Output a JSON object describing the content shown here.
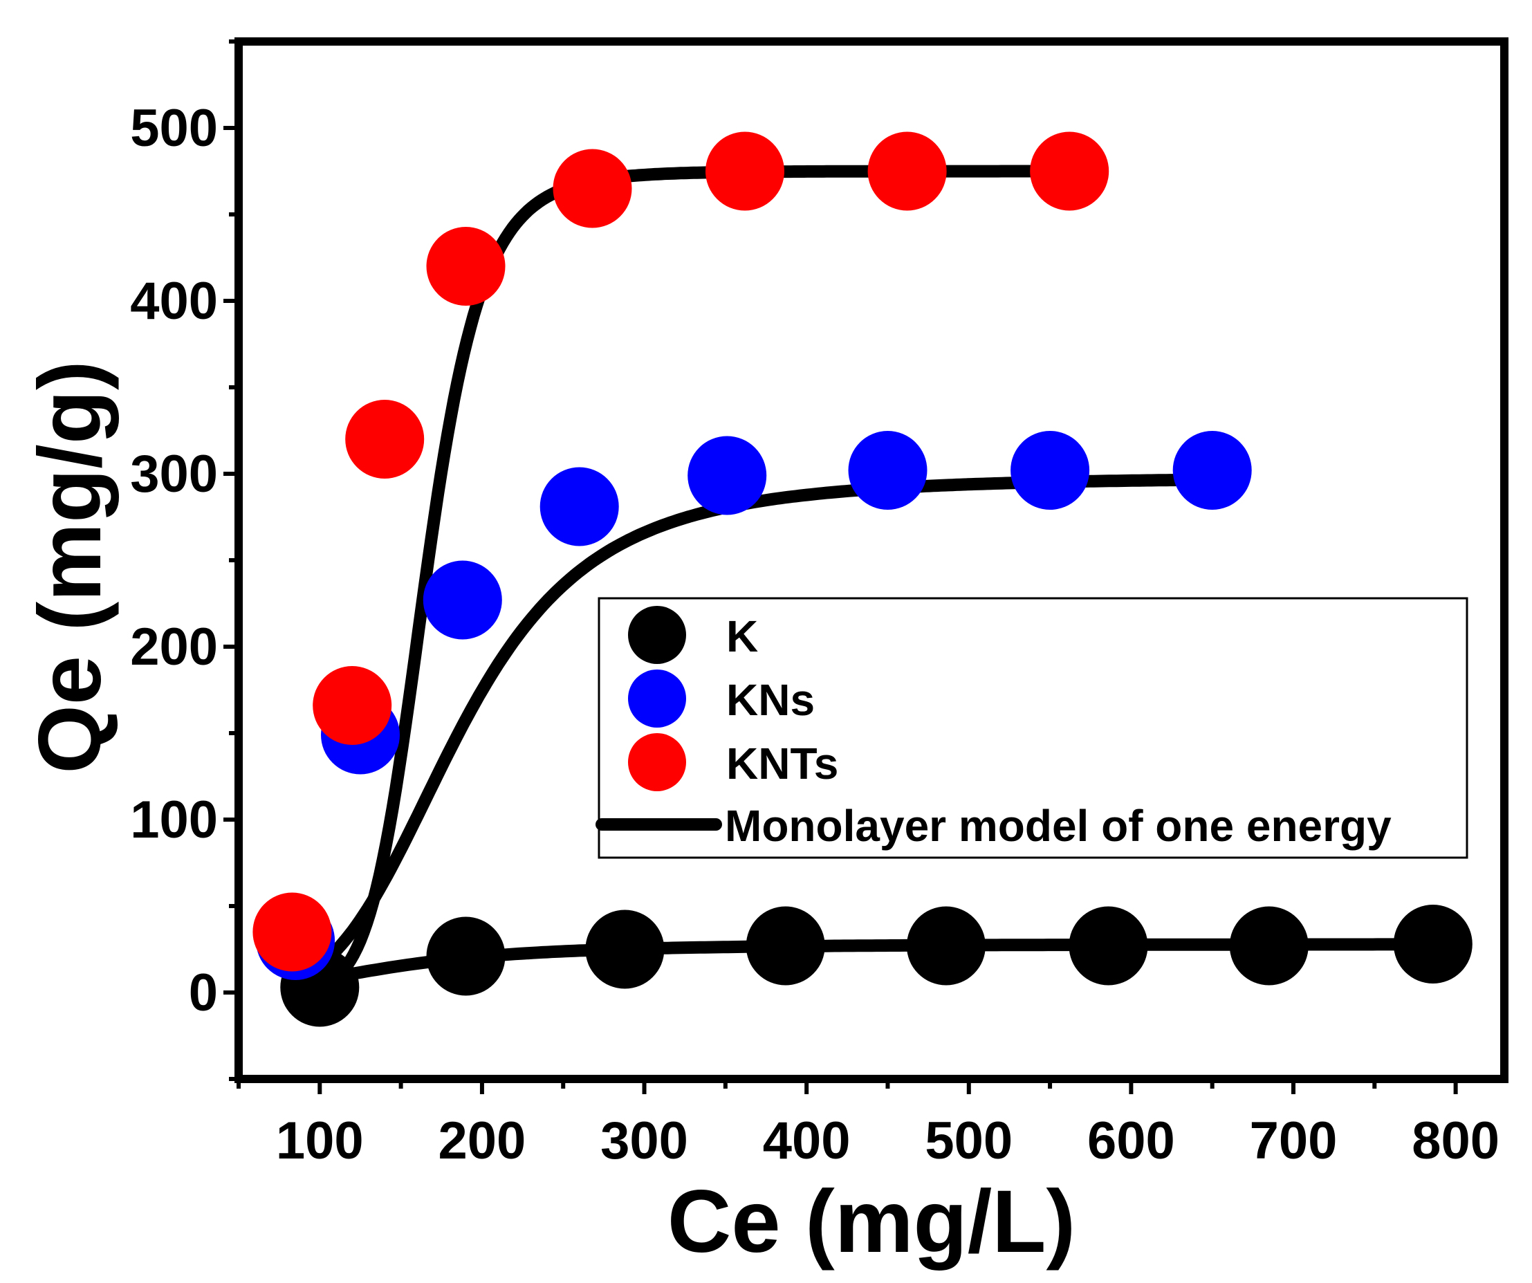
{
  "chart_data": {
    "type": "scatter",
    "xlabel": "Ce (mg/L)",
    "ylabel": "Qe (mg/g)",
    "xlim": [
      50,
      830
    ],
    "ylim": [
      -50,
      550
    ],
    "xticks": [
      100,
      200,
      300,
      400,
      500,
      600,
      700,
      800
    ],
    "yticks": [
      0,
      100,
      200,
      300,
      400,
      500
    ],
    "legend_position": "center-right",
    "series": [
      {
        "name": "K",
        "color": "#000000",
        "x": [
          100,
          190,
          288,
          387,
          486,
          586,
          685,
          786
        ],
        "y": [
          3,
          21,
          25,
          27,
          27,
          27,
          27,
          28
        ]
      },
      {
        "name": "KNs",
        "color": "#0000ff",
        "x": [
          85,
          125,
          188,
          260,
          351,
          450,
          550,
          650
        ],
        "y": [
          30,
          149,
          227,
          281,
          299,
          302,
          302,
          302
        ]
      },
      {
        "name": "KNTs",
        "color": "#ff0000",
        "x": [
          83,
          120,
          140,
          190,
          268,
          362,
          462,
          562
        ],
        "y": [
          35,
          166,
          320,
          420,
          465,
          475,
          475,
          475
        ]
      }
    ],
    "fit": {
      "name": "Monolayer model of one energy",
      "color": "#000000",
      "curves": [
        {
          "for": "K",
          "x_min": 100,
          "x_max": 786,
          "qmax": 28,
          "n": 3,
          "c_half": 140,
          "offset": 0
        },
        {
          "for": "KNs",
          "x_min": 85,
          "x_max": 650,
          "qmax": 298,
          "n": 4,
          "c_half": 165,
          "offset": 20
        },
        {
          "for": "KNTs",
          "x_min": 83,
          "x_max": 562,
          "qmax": 475,
          "n": 8,
          "c_half": 140,
          "offset": 25
        }
      ]
    }
  }
}
